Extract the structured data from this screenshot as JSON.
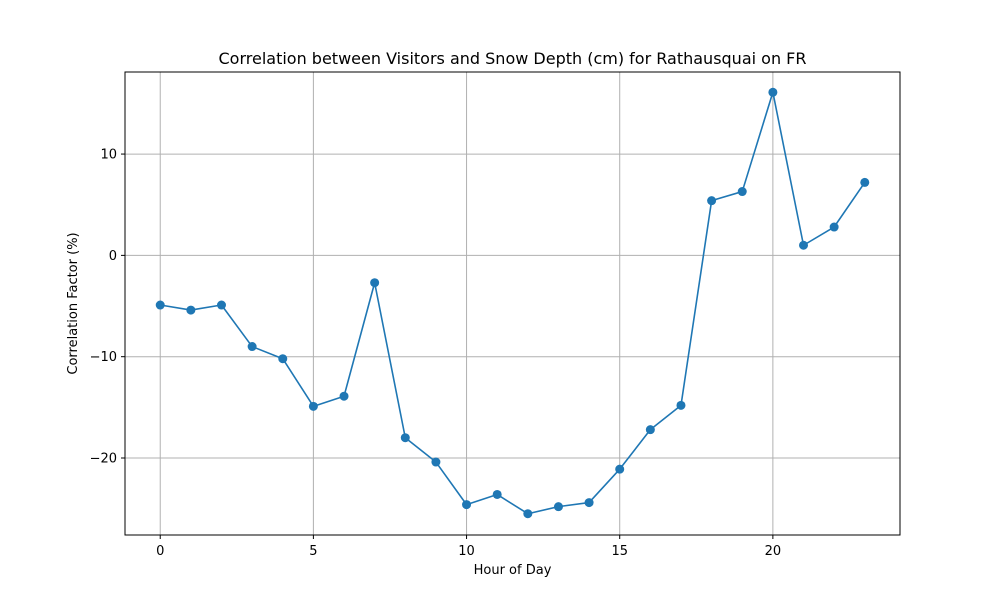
{
  "chart_data": {
    "type": "line",
    "title": "Correlation between Visitors and Snow Depth (cm) for Rathausquai on FR",
    "xlabel": "Hour of Day",
    "ylabel": "Correlation Factor (%)",
    "xlim": [
      -1.15,
      24.15
    ],
    "ylim": [
      -27.6,
      18.1
    ],
    "xticks": [
      0,
      5,
      10,
      15,
      20
    ],
    "yticks": [
      -20,
      -10,
      0,
      10
    ],
    "xtick_labels": [
      "0",
      "5",
      "10",
      "15",
      "20"
    ],
    "ytick_labels": [
      "−20",
      "−10",
      "0",
      "10"
    ],
    "grid": true,
    "series": [
      {
        "color": "#1f77b4",
        "marker": "circle",
        "x": [
          0,
          1,
          2,
          3,
          4,
          5,
          6,
          7,
          8,
          9,
          10,
          11,
          12,
          13,
          14,
          15,
          16,
          17,
          18,
          19,
          20,
          21,
          22,
          23
        ],
        "y": [
          -4.9,
          -5.4,
          -4.9,
          -9.0,
          -10.2,
          -14.9,
          -13.9,
          -2.7,
          -18.0,
          -20.4,
          -24.6,
          -23.6,
          -25.5,
          -24.8,
          -24.4,
          -21.1,
          -17.2,
          -14.8,
          5.4,
          6.3,
          16.1,
          1.0,
          2.8,
          7.2
        ]
      }
    ]
  }
}
